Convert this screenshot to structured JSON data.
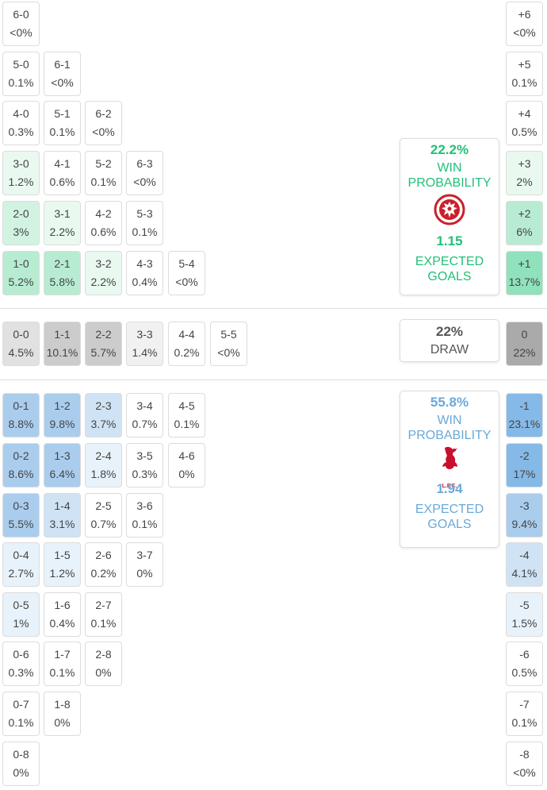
{
  "colors": {
    "home_accent": "#22c07a",
    "away_accent": "#6aa9d8",
    "draw_accent": "#555555"
  },
  "home_scores": [
    [
      "1-0",
      "5.2%"
    ],
    [
      "2-1",
      "5.8%"
    ],
    [
      "3-2",
      "2.2%"
    ],
    [
      "4-3",
      "0.4%"
    ],
    [
      "5-4",
      "<0%"
    ],
    [
      "2-0",
      "3%"
    ],
    [
      "3-1",
      "2.2%"
    ],
    [
      "4-2",
      "0.6%"
    ],
    [
      "5-3",
      "0.1%"
    ],
    [
      "3-0",
      "1.2%"
    ],
    [
      "4-1",
      "0.6%"
    ],
    [
      "5-2",
      "0.1%"
    ],
    [
      "6-3",
      "<0%"
    ],
    [
      "4-0",
      "0.3%"
    ],
    [
      "5-1",
      "0.1%"
    ],
    [
      "6-2",
      "<0%"
    ],
    [
      "5-0",
      "0.1%"
    ],
    [
      "6-1",
      "<0%"
    ],
    [
      "6-0",
      "<0%"
    ]
  ],
  "draw_scores": [
    [
      "0-0",
      "4.5%"
    ],
    [
      "1-1",
      "10.1%"
    ],
    [
      "2-2",
      "5.7%"
    ],
    [
      "3-3",
      "1.4%"
    ],
    [
      "4-4",
      "0.2%"
    ],
    [
      "5-5",
      "<0%"
    ]
  ],
  "away_scores": [
    [
      "0-1",
      "8.8%"
    ],
    [
      "1-2",
      "9.8%"
    ],
    [
      "2-3",
      "3.7%"
    ],
    [
      "3-4",
      "0.7%"
    ],
    [
      "4-5",
      "0.1%"
    ],
    [
      "0-2",
      "8.6%"
    ],
    [
      "1-3",
      "6.4%"
    ],
    [
      "2-4",
      "1.8%"
    ],
    [
      "3-5",
      "0.3%"
    ],
    [
      "4-6",
      "0%"
    ],
    [
      "0-3",
      "5.5%"
    ],
    [
      "1-4",
      "3.1%"
    ],
    [
      "2-5",
      "0.7%"
    ],
    [
      "3-6",
      "0.1%"
    ],
    [
      "0-4",
      "2.7%"
    ],
    [
      "1-5",
      "1.2%"
    ],
    [
      "2-6",
      "0.2%"
    ],
    [
      "3-7",
      "0%"
    ],
    [
      "0-5",
      "1%"
    ],
    [
      "1-6",
      "0.4%"
    ],
    [
      "2-7",
      "0.1%"
    ],
    [
      "0-6",
      "0.3%"
    ],
    [
      "1-7",
      "0.1%"
    ],
    [
      "2-8",
      "0%"
    ],
    [
      "0-7",
      "0.1%"
    ],
    [
      "1-8",
      "0%"
    ],
    [
      "0-8",
      "0%"
    ]
  ],
  "margins": [
    [
      "+6",
      "<0%"
    ],
    [
      "+5",
      "0.1%"
    ],
    [
      "+4",
      "0.5%"
    ],
    [
      "+3",
      "2%"
    ],
    [
      "+2",
      "6%"
    ],
    [
      "+1",
      "13.7%"
    ],
    [
      "0",
      "22%"
    ],
    [
      "-1",
      "23.1%"
    ],
    [
      "-2",
      "17%"
    ],
    [
      "-3",
      "9.4%"
    ],
    [
      "-4",
      "4.1%"
    ],
    [
      "-5",
      "1.5%"
    ],
    [
      "-6",
      "0.5%"
    ],
    [
      "-7",
      "0.1%"
    ],
    [
      "-8",
      "<0%"
    ]
  ],
  "home_card": {
    "win_pct": "22.2%",
    "win_label_1": "WIN",
    "win_label_2": "PROBABILITY",
    "crest_icon": "eintracht-frankfurt-eagle-crest",
    "xg": "1.15",
    "xg_label_1": "EXPECTED",
    "xg_label_2": "GOALS"
  },
  "draw_card": {
    "pct": "22%",
    "label": "DRAW"
  },
  "away_card": {
    "win_pct": "55.8%",
    "win_label_1": "WIN",
    "win_label_2": "PROBABILITY",
    "crest_icon": "liverpool-fc-liverbird-crest",
    "crest_text": "L.F.C.",
    "xg": "1.94",
    "xg_label_1": "EXPECTED",
    "xg_label_2": "GOALS"
  }
}
